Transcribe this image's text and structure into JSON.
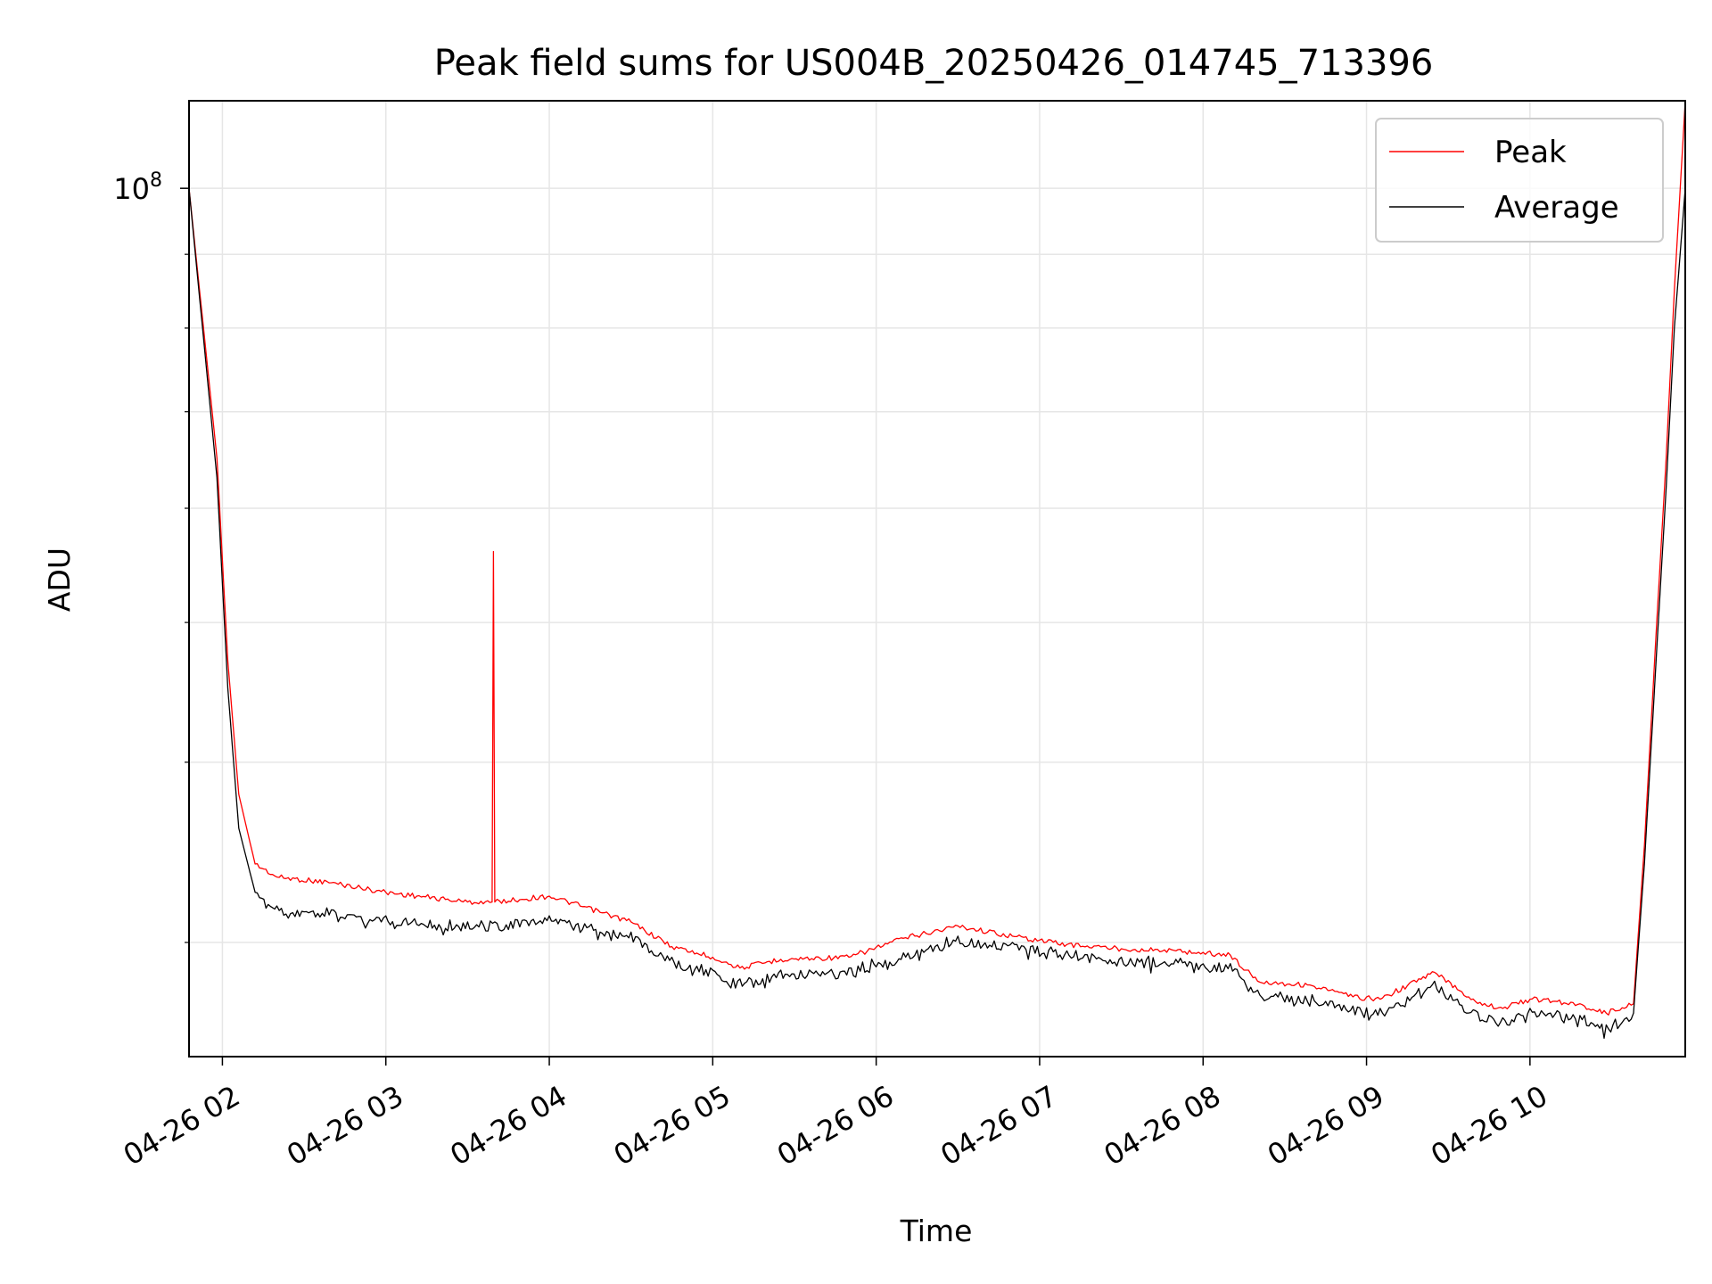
{
  "chart_data": {
    "type": "line",
    "title": "Peak field sums for US004B_20250426_014745_713396",
    "xlabel": "Time",
    "ylabel": "ADU",
    "y_scale": "log",
    "ylim": [
      25000000,
      115000000
    ],
    "xlim": [
      "2025-04-26 01:47:45",
      "2025-04-26 10:57:00"
    ],
    "grid": true,
    "legend_position": "top-right",
    "x_tick_labels": [
      "04-26 02",
      "04-26 03",
      "04-26 04",
      "04-26 05",
      "04-26 06",
      "04-26 07",
      "04-26 08",
      "04-26 09",
      "04-26 10"
    ],
    "x_tick_times": [
      "2025-04-26 02:00",
      "2025-04-26 03:00",
      "2025-04-26 04:00",
      "2025-04-26 05:00",
      "2025-04-26 06:00",
      "2025-04-26 07:00",
      "2025-04-26 08:00",
      "2025-04-26 09:00",
      "2025-04-26 10:00"
    ],
    "y_major_ticks": [
      100000000
    ],
    "y_major_tick_labels": [
      "10^8"
    ],
    "y_minor_ticks": [
      30000000,
      40000000,
      50000000,
      60000000,
      70000000,
      80000000,
      90000000
    ],
    "series": [
      {
        "name": "Peak",
        "color": "#ff0000",
        "x": [
          "2025-04-26 01:47:45",
          "2025-04-26 01:58",
          "2025-04-26 02:02",
          "2025-04-26 02:06",
          "2025-04-26 02:12",
          "2025-04-26 02:20",
          "2025-04-26 02:40",
          "2025-04-26 03:00",
          "2025-04-26 03:30",
          "2025-04-26 03:39",
          "2025-04-26 03:39:30",
          "2025-04-26 03:40",
          "2025-04-26 04:00",
          "2025-04-26 04:30",
          "2025-04-26 04:45",
          "2025-04-26 05:00",
          "2025-04-26 05:10",
          "2025-04-26 05:25",
          "2025-04-26 05:50",
          "2025-04-26 06:10",
          "2025-04-26 06:30",
          "2025-04-26 06:50",
          "2025-04-26 07:10",
          "2025-04-26 07:30",
          "2025-04-26 07:50",
          "2025-04-26 08:10",
          "2025-04-26 08:20",
          "2025-04-26 08:40",
          "2025-04-26 08:55",
          "2025-04-26 09:05",
          "2025-04-26 09:15",
          "2025-04-26 09:25",
          "2025-04-26 09:40",
          "2025-04-26 09:50",
          "2025-04-26 10:00",
          "2025-04-26 10:10",
          "2025-04-26 10:20",
          "2025-04-26 10:28",
          "2025-04-26 10:38",
          "2025-04-26 10:42",
          "2025-04-26 10:46",
          "2025-04-26 10:50",
          "2025-04-26 10:53",
          "2025-04-26 10:57"
        ],
        "y": [
          100000000,
          65000000,
          47000000,
          38000000,
          34000000,
          33300000,
          33000000,
          32500000,
          32000000,
          32000000,
          56000000,
          32000000,
          32300000,
          31000000,
          29800000,
          29300000,
          28800000,
          29200000,
          29300000,
          30200000,
          30800000,
          30300000,
          29900000,
          29700000,
          29600000,
          29400000,
          28200000,
          28000000,
          27500000,
          27400000,
          28000000,
          28600000,
          27300000,
          27000000,
          27400000,
          27300000,
          27100000,
          26800000,
          27200000,
          35000000,
          48000000,
          65000000,
          85000000,
          115000000
        ]
      },
      {
        "name": "Average",
        "color": "#000000",
        "x": [
          "2025-04-26 01:47:45",
          "2025-04-26 01:58",
          "2025-04-26 02:02",
          "2025-04-26 02:06",
          "2025-04-26 02:12",
          "2025-04-26 02:20",
          "2025-04-26 02:40",
          "2025-04-26 03:00",
          "2025-04-26 03:30",
          "2025-04-26 03:40",
          "2025-04-26 04:00",
          "2025-04-26 04:30",
          "2025-04-26 04:45",
          "2025-04-26 05:00",
          "2025-04-26 05:10",
          "2025-04-26 05:25",
          "2025-04-26 05:50",
          "2025-04-26 06:10",
          "2025-04-26 06:30",
          "2025-04-26 06:50",
          "2025-04-26 07:10",
          "2025-04-26 07:30",
          "2025-04-26 07:50",
          "2025-04-26 08:10",
          "2025-04-26 08:20",
          "2025-04-26 08:40",
          "2025-04-26 08:55",
          "2025-04-26 09:05",
          "2025-04-26 09:15",
          "2025-04-26 09:25",
          "2025-04-26 09:40",
          "2025-04-26 09:50",
          "2025-04-26 10:00",
          "2025-04-26 10:10",
          "2025-04-26 10:20",
          "2025-04-26 10:28",
          "2025-04-26 10:38",
          "2025-04-26 10:42",
          "2025-04-26 10:46",
          "2025-04-26 10:50",
          "2025-04-26 10:53",
          "2025-04-26 10:57"
        ],
        "y": [
          100000000,
          63000000,
          45000000,
          36000000,
          32500000,
          31800000,
          31600000,
          31300000,
          31000000,
          31000000,
          31300000,
          30500000,
          29300000,
          28700000,
          28300000,
          28700000,
          28800000,
          29500000,
          30300000,
          30000000,
          29600000,
          29300000,
          29200000,
          29000000,
          27800000,
          27600000,
          27100000,
          27000000,
          27500000,
          28200000,
          26900000,
          26600000,
          27000000,
          26900000,
          26700000,
          26300000,
          26800000,
          34000000,
          46000000,
          62000000,
          80000000,
          100000000
        ]
      }
    ]
  }
}
